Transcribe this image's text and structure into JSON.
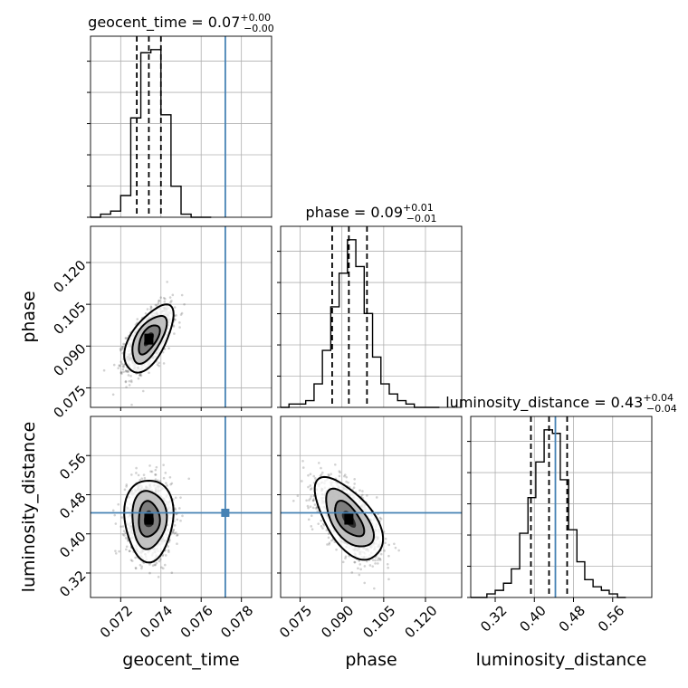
{
  "chart_data": {
    "type": "corner",
    "parameters": [
      "geocent_time",
      "phase",
      "luminosity_distance"
    ],
    "axes": {
      "geocent_time": {
        "label": "geocent_time",
        "range": [
          0.0705,
          0.0795
        ],
        "ticks": [
          0.072,
          0.074,
          0.076,
          0.078
        ],
        "tick_labels": [
          "0.072",
          "0.074",
          "0.076",
          "0.078"
        ]
      },
      "phase": {
        "label": "phase",
        "range": [
          0.068,
          0.133
        ],
        "ticks": [
          0.075,
          0.09,
          0.105,
          0.12
        ],
        "tick_labels": [
          "0.075",
          "0.090",
          "0.105",
          "0.120"
        ]
      },
      "luminosity_distance": {
        "label": "luminosity_distance",
        "range": [
          0.27,
          0.64
        ],
        "ticks": [
          0.32,
          0.4,
          0.48,
          0.56
        ],
        "tick_labels": [
          "0.32",
          "0.40",
          "0.48",
          "0.56"
        ]
      }
    },
    "titles": [
      {
        "param": "geocent_time",
        "text": "geocent_time = 0.07",
        "sup": "+0.00",
        "sub": "−0.00"
      },
      {
        "param": "phase",
        "text": "phase = 0.09",
        "sup": "+0.01",
        "sub": "−0.01"
      },
      {
        "param": "luminosity_distance",
        "text": "luminosity_distance = 0.43",
        "sup": "+0.04",
        "sub": "−0.04"
      }
    ],
    "truths": {
      "geocent_time": 0.0772,
      "phase": null,
      "luminosity_distance": 0.443
    },
    "quantiles": {
      "geocent_time": [
        0.0728,
        0.0734,
        0.074
      ],
      "phase": [
        0.0865,
        0.0925,
        0.099
      ],
      "luminosity_distance": [
        0.393,
        0.43,
        0.467
      ]
    },
    "histograms": {
      "geocent_time": {
        "edges": [
          0.0705,
          0.071,
          0.0715,
          0.072,
          0.0725,
          0.073,
          0.0735,
          0.074,
          0.0745,
          0.075,
          0.0755,
          0.076,
          0.0765
        ],
        "counts": [
          0,
          1,
          2,
          7,
          32,
          53,
          54,
          33,
          10,
          1,
          0,
          0
        ]
      },
      "phase": {
        "edges": [
          0.068,
          0.071,
          0.074,
          0.077,
          0.08,
          0.083,
          0.086,
          0.089,
          0.092,
          0.095,
          0.098,
          0.101,
          0.104,
          0.107,
          0.11,
          0.113,
          0.116,
          0.119,
          0.122,
          0.125
        ],
        "counts": [
          0,
          1,
          1,
          2,
          7,
          17,
          30,
          40,
          50,
          42,
          28,
          15,
          7,
          4,
          2,
          1,
          0,
          0,
          0
        ]
      },
      "luminosity_distance": {
        "edges": [
          0.27,
          0.287,
          0.303,
          0.32,
          0.337,
          0.353,
          0.37,
          0.387,
          0.403,
          0.42,
          0.437,
          0.453,
          0.47,
          0.487,
          0.503,
          0.52,
          0.537,
          0.553,
          0.57,
          0.587
        ],
        "counts": [
          0,
          0,
          1,
          2,
          4,
          8,
          18,
          28,
          38,
          47,
          46,
          33,
          19,
          10,
          5,
          3,
          2,
          1,
          0
        ]
      }
    },
    "joint": {
      "phase_vs_geocent_time": {
        "center": [
          0.0734,
          0.0925
        ],
        "sigma": [
          0.00055,
          0.0055
        ],
        "rho": 0.6
      },
      "luminosity_distance_vs_geocent_time": {
        "center": [
          0.0734,
          0.43
        ],
        "sigma": [
          0.00055,
          0.038
        ],
        "rho": 0.0
      },
      "luminosity_distance_vs_phase": {
        "center": [
          0.0925,
          0.43
        ],
        "sigma": [
          0.0055,
          0.038
        ],
        "rho": -0.6
      }
    }
  }
}
